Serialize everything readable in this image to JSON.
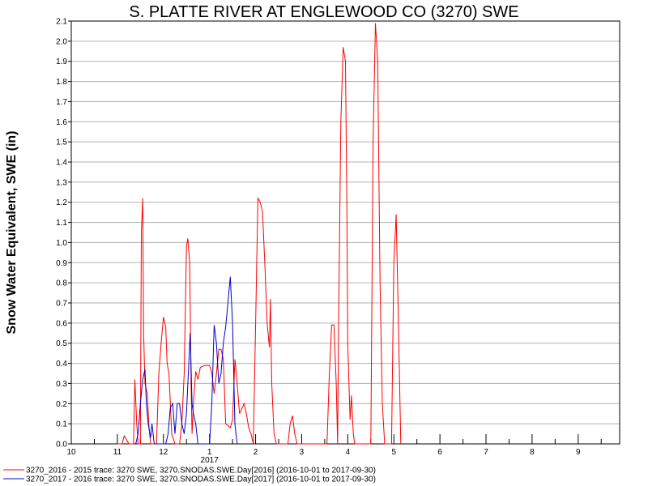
{
  "chart_data": {
    "type": "line",
    "title": "S. PLATTE RIVER AT ENGLEWOOD CO (3270) SWE",
    "ylabel": "Snow Water Equivalent, SWE (in)",
    "xlabel": "",
    "year_label": "2017",
    "ylim": [
      0,
      2.1
    ],
    "xlim": [
      10,
      10.9
    ],
    "y_ticks": [
      "0.0",
      "0.1",
      "0.2",
      "0.3",
      "0.4",
      "0.5",
      "0.6",
      "0.7",
      "0.8",
      "0.9",
      "1.0",
      "1.1",
      "1.2",
      "1.3",
      "1.4",
      "1.5",
      "1.6",
      "1.7",
      "1.8",
      "1.9",
      "2.0",
      "2.1"
    ],
    "x_ticks": [
      {
        "value": 10,
        "label": "10"
      },
      {
        "value": 11,
        "label": "11"
      },
      {
        "value": 12,
        "label": "12"
      },
      {
        "value": 13,
        "label": "1"
      },
      {
        "value": 14,
        "label": "2"
      },
      {
        "value": 15,
        "label": "3"
      },
      {
        "value": 16,
        "label": "4"
      },
      {
        "value": 17,
        "label": "5"
      },
      {
        "value": 18,
        "label": "6"
      },
      {
        "value": 19,
        "label": "7"
      },
      {
        "value": 20,
        "label": "8"
      },
      {
        "value": 21,
        "label": "9"
      }
    ],
    "grid": "horizontal",
    "legend_position": "bottom",
    "series": [
      {
        "name": "3270_2016 - 2015 trace: 3270 SWE, 3270.SNODAS.SWE.Day[2016] (2016-10-01 to 2017-09-30)",
        "color": "#ff0000",
        "points": [
          [
            11.0,
            0
          ],
          [
            11.1,
            0
          ],
          [
            11.15,
            0.04
          ],
          [
            11.2,
            0.02
          ],
          [
            11.25,
            0
          ],
          [
            11.35,
            0
          ],
          [
            11.38,
            0.32
          ],
          [
            11.42,
            0.1
          ],
          [
            11.45,
            0
          ],
          [
            11.5,
            0
          ],
          [
            11.52,
            1.05
          ],
          [
            11.55,
            1.22
          ],
          [
            11.57,
            0.55
          ],
          [
            11.6,
            0.3
          ],
          [
            11.65,
            0.25
          ],
          [
            11.68,
            0.1
          ],
          [
            11.72,
            0
          ],
          [
            11.85,
            0
          ],
          [
            11.9,
            0.35
          ],
          [
            11.95,
            0.5
          ],
          [
            12.0,
            0.63
          ],
          [
            12.05,
            0.58
          ],
          [
            12.08,
            0.4
          ],
          [
            12.12,
            0.35
          ],
          [
            12.15,
            0.2
          ],
          [
            12.18,
            0.05
          ],
          [
            12.25,
            0
          ],
          [
            12.35,
            0
          ],
          [
            12.4,
            0.1
          ],
          [
            12.45,
            0.35
          ],
          [
            12.5,
            0.98
          ],
          [
            12.53,
            1.02
          ],
          [
            12.57,
            0.9
          ],
          [
            12.6,
            0.3
          ],
          [
            12.62,
            0.05
          ],
          [
            12.65,
            0.2
          ],
          [
            12.7,
            0.36
          ],
          [
            12.75,
            0.32
          ],
          [
            12.8,
            0.38
          ],
          [
            12.9,
            0.39
          ],
          [
            13.0,
            0.39
          ],
          [
            13.05,
            0.35
          ],
          [
            13.1,
            0.25
          ],
          [
            13.15,
            0.35
          ],
          [
            13.2,
            0.47
          ],
          [
            13.25,
            0.47
          ],
          [
            13.3,
            0.42
          ],
          [
            13.35,
            0.1
          ],
          [
            13.45,
            0.08
          ],
          [
            13.5,
            0.12
          ],
          [
            13.55,
            0.42
          ],
          [
            13.6,
            0.3
          ],
          [
            13.65,
            0.15
          ],
          [
            13.75,
            0.2
          ],
          [
            13.8,
            0.15
          ],
          [
            13.85,
            0.08
          ],
          [
            13.9,
            0.05
          ],
          [
            13.95,
            0
          ],
          [
            14.0,
            0.6
          ],
          [
            14.05,
            1.22
          ],
          [
            14.1,
            1.2
          ],
          [
            14.15,
            1.15
          ],
          [
            14.2,
            0.9
          ],
          [
            14.25,
            0.6
          ],
          [
            14.3,
            0.48
          ],
          [
            14.32,
            0.72
          ],
          [
            14.35,
            0.3
          ],
          [
            14.4,
            0.05
          ],
          [
            14.45,
            0
          ],
          [
            14.7,
            0
          ],
          [
            14.75,
            0.1
          ],
          [
            14.8,
            0.14
          ],
          [
            14.85,
            0.05
          ],
          [
            14.9,
            0
          ],
          [
            15.55,
            0
          ],
          [
            15.6,
            0.35
          ],
          [
            15.65,
            0.59
          ],
          [
            15.7,
            0.59
          ],
          [
            15.75,
            0.3
          ],
          [
            15.78,
            0
          ],
          [
            15.8,
            0.6
          ],
          [
            15.85,
            1.6
          ],
          [
            15.9,
            1.97
          ],
          [
            15.95,
            1.9
          ],
          [
            15.98,
            1.2
          ],
          [
            16.0,
            0.5
          ],
          [
            16.05,
            0.12
          ],
          [
            16.08,
            0.24
          ],
          [
            16.12,
            0.05
          ],
          [
            16.15,
            0
          ],
          [
            16.5,
            0
          ],
          [
            16.55,
            1.5
          ],
          [
            16.6,
            2.09
          ],
          [
            16.65,
            1.9
          ],
          [
            16.7,
            0.8
          ],
          [
            16.75,
            0.2
          ],
          [
            16.8,
            0
          ],
          [
            16.95,
            0
          ],
          [
            17.0,
            0.9
          ],
          [
            17.05,
            1.14
          ],
          [
            17.1,
            0.6
          ],
          [
            17.15,
            0
          ]
        ]
      },
      {
        "name": "3270_2017 - 2016 trace: 3270 SWE, 3270.SNODAS.SWE.Day[2017] (2016-10-01 to 2017-09-30)",
        "color": "#0000cc",
        "points": [
          [
            11.4,
            0
          ],
          [
            11.45,
            0.05
          ],
          [
            11.5,
            0.2
          ],
          [
            11.55,
            0.32
          ],
          [
            11.6,
            0.37
          ],
          [
            11.63,
            0.2
          ],
          [
            11.67,
            0.1
          ],
          [
            11.72,
            0.03
          ],
          [
            11.75,
            0.1
          ],
          [
            11.8,
            0
          ],
          [
            12.05,
            0
          ],
          [
            12.1,
            0.05
          ],
          [
            12.15,
            0.18
          ],
          [
            12.2,
            0.2
          ],
          [
            12.25,
            0.05
          ],
          [
            12.3,
            0.2
          ],
          [
            12.35,
            0.2
          ],
          [
            12.4,
            0.1
          ],
          [
            12.45,
            0.05
          ],
          [
            12.5,
            0.15
          ],
          [
            12.55,
            0.4
          ],
          [
            12.58,
            0.55
          ],
          [
            12.62,
            0.2
          ],
          [
            12.65,
            0.15
          ],
          [
            12.7,
            0.1
          ],
          [
            12.75,
            0
          ],
          [
            13.0,
            0
          ],
          [
            13.05,
            0.2
          ],
          [
            13.1,
            0.59
          ],
          [
            13.15,
            0.5
          ],
          [
            13.2,
            0.3
          ],
          [
            13.25,
            0.35
          ],
          [
            13.3,
            0.5
          ],
          [
            13.35,
            0.58
          ],
          [
            13.4,
            0.7
          ],
          [
            13.45,
            0.83
          ],
          [
            13.5,
            0.6
          ],
          [
            13.55,
            0.1
          ],
          [
            13.6,
            0
          ]
        ]
      }
    ]
  }
}
